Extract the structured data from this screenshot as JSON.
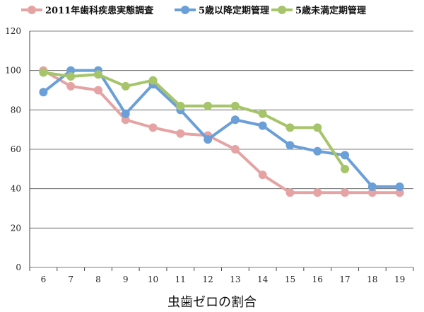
{
  "chart_data": {
    "type": "line",
    "title": "",
    "xlabel": "虫歯ゼロの割合",
    "ylabel": "",
    "categories": [
      "6",
      "7",
      "8",
      "9",
      "10",
      "11",
      "12",
      "13",
      "14",
      "15",
      "16",
      "17",
      "18",
      "19"
    ],
    "ylim": [
      0,
      120
    ],
    "yticks": [
      "0",
      "20",
      "40",
      "60",
      "80",
      "100",
      "120"
    ],
    "grid": true,
    "legend_position": "top",
    "series": [
      {
        "name": "2011年歯科疾患実態調査",
        "color": "#e5a3a3",
        "values": [
          100,
          92,
          90,
          75,
          71,
          68,
          67,
          60,
          47,
          38,
          38,
          38,
          38,
          38
        ]
      },
      {
        "name": "5歳以降定期管理",
        "color": "#6a9fd8",
        "values": [
          89,
          100,
          100,
          78,
          93,
          80,
          65,
          75,
          72,
          62,
          59,
          57,
          41,
          41
        ]
      },
      {
        "name": "5歳未満定期管理",
        "color": "#a6c46a",
        "values": [
          99,
          97,
          98,
          92,
          95,
          82,
          82,
          82,
          78,
          71,
          71,
          50,
          null,
          null
        ]
      }
    ]
  }
}
